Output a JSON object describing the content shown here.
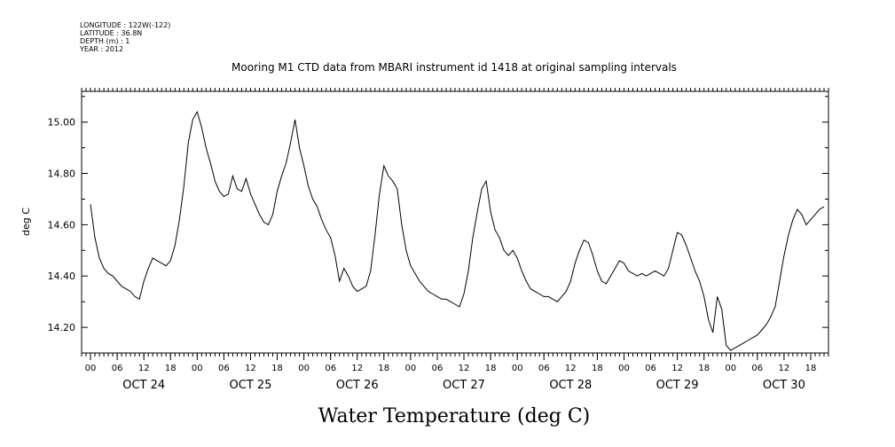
{
  "metadata": {
    "lines": [
      "LONGITUDE : 122W(-122)",
      "LATITUDE : 36.8N",
      "DEPTH (m) : 1",
      "YEAR : 2012"
    ]
  },
  "chart_data": {
    "type": "line",
    "title": "Mooring M1 CTD data from MBARI instrument id 1418 at original sampling intervals",
    "bottom_title": "Water Temperature (deg C)",
    "ylabel": "deg C",
    "xlabel": "",
    "ylim": [
      14.1,
      15.12
    ],
    "xlim": [
      "2012-10-23T22:00",
      "2012-10-30T22:00"
    ],
    "ytick_labels": [
      "14.20",
      "14.40",
      "14.60",
      "14.80",
      "15.00"
    ],
    "ytick_values": [
      14.2,
      14.4,
      14.6,
      14.8,
      15.0
    ],
    "x_hour_labels": [
      "00",
      "06",
      "12",
      "18",
      "00",
      "06",
      "12",
      "18",
      "00",
      "06",
      "12",
      "18",
      "00",
      "06",
      "12",
      "18",
      "00",
      "06",
      "12",
      "18",
      "00",
      "06",
      "12",
      "18",
      "00",
      "06",
      "12",
      "18"
    ],
    "x_day_labels": [
      "OCT 24",
      "OCT 25",
      "OCT 26",
      "OCT 27",
      "OCT 28",
      "OCT 29",
      "OCT 30"
    ],
    "grid": false,
    "series": [
      {
        "x": [
          "2012-10-24T00:00",
          "2012-10-24T01:00",
          "2012-10-24T02:00",
          "2012-10-24T03:00",
          "2012-10-24T04:00",
          "2012-10-24T05:00",
          "2012-10-24T06:00",
          "2012-10-24T07:00",
          "2012-10-24T08:00",
          "2012-10-24T09:00",
          "2012-10-24T10:00",
          "2012-10-24T11:00",
          "2012-10-24T12:00",
          "2012-10-24T13:00",
          "2012-10-24T14:00",
          "2012-10-24T15:00",
          "2012-10-24T16:00",
          "2012-10-24T17:00",
          "2012-10-24T18:00",
          "2012-10-24T19:00",
          "2012-10-24T20:00",
          "2012-10-24T21:00",
          "2012-10-24T22:00",
          "2012-10-24T23:00",
          "2012-10-25T00:00",
          "2012-10-25T01:00",
          "2012-10-25T02:00",
          "2012-10-25T03:00",
          "2012-10-25T04:00",
          "2012-10-25T05:00",
          "2012-10-25T06:00",
          "2012-10-25T07:00",
          "2012-10-25T08:00",
          "2012-10-25T09:00",
          "2012-10-25T10:00",
          "2012-10-25T11:00",
          "2012-10-25T12:00",
          "2012-10-25T13:00",
          "2012-10-25T14:00",
          "2012-10-25T15:00",
          "2012-10-25T16:00",
          "2012-10-25T17:00",
          "2012-10-25T18:00",
          "2012-10-25T19:00",
          "2012-10-25T20:00",
          "2012-10-25T21:00",
          "2012-10-25T22:00",
          "2012-10-25T23:00",
          "2012-10-26T00:00",
          "2012-10-26T01:00",
          "2012-10-26T02:00",
          "2012-10-26T03:00",
          "2012-10-26T04:00",
          "2012-10-26T05:00",
          "2012-10-26T06:00",
          "2012-10-26T07:00",
          "2012-10-26T08:00",
          "2012-10-26T09:00",
          "2012-10-26T10:00",
          "2012-10-26T11:00",
          "2012-10-26T12:00",
          "2012-10-26T13:00",
          "2012-10-26T14:00",
          "2012-10-26T15:00",
          "2012-10-26T16:00",
          "2012-10-26T17:00",
          "2012-10-26T18:00",
          "2012-10-26T19:00",
          "2012-10-26T20:00",
          "2012-10-26T21:00",
          "2012-10-26T22:00",
          "2012-10-26T23:00",
          "2012-10-27T00:00",
          "2012-10-27T01:00",
          "2012-10-27T02:00",
          "2012-10-27T03:00",
          "2012-10-27T04:00",
          "2012-10-27T05:00",
          "2012-10-27T06:00",
          "2012-10-27T07:00",
          "2012-10-27T08:00",
          "2012-10-27T09:00",
          "2012-10-27T10:00",
          "2012-10-27T11:00",
          "2012-10-27T12:00",
          "2012-10-27T13:00",
          "2012-10-27T14:00",
          "2012-10-27T15:00",
          "2012-10-27T16:00",
          "2012-10-27T17:00",
          "2012-10-27T18:00",
          "2012-10-27T19:00",
          "2012-10-27T20:00",
          "2012-10-27T21:00",
          "2012-10-27T22:00",
          "2012-10-27T23:00",
          "2012-10-28T00:00",
          "2012-10-28T01:00",
          "2012-10-28T02:00",
          "2012-10-28T03:00",
          "2012-10-28T04:00",
          "2012-10-28T05:00",
          "2012-10-28T06:00",
          "2012-10-28T07:00",
          "2012-10-28T08:00",
          "2012-10-28T09:00",
          "2012-10-28T10:00",
          "2012-10-28T11:00",
          "2012-10-28T12:00",
          "2012-10-28T13:00",
          "2012-10-28T14:00",
          "2012-10-28T15:00",
          "2012-10-28T16:00",
          "2012-10-28T17:00",
          "2012-10-28T18:00",
          "2012-10-28T19:00",
          "2012-10-28T20:00",
          "2012-10-28T21:00",
          "2012-10-28T22:00",
          "2012-10-28T23:00",
          "2012-10-29T00:00",
          "2012-10-29T01:00",
          "2012-10-29T02:00",
          "2012-10-29T03:00",
          "2012-10-29T04:00",
          "2012-10-29T05:00",
          "2012-10-29T06:00",
          "2012-10-29T07:00",
          "2012-10-29T08:00",
          "2012-10-29T09:00",
          "2012-10-29T10:00",
          "2012-10-29T11:00",
          "2012-10-29T12:00",
          "2012-10-29T13:00",
          "2012-10-29T14:00",
          "2012-10-29T15:00",
          "2012-10-29T16:00",
          "2012-10-29T17:00",
          "2012-10-29T18:00",
          "2012-10-29T19:00",
          "2012-10-29T20:00",
          "2012-10-29T21:00",
          "2012-10-29T22:00",
          "2012-10-29T23:00",
          "2012-10-30T00:00",
          "2012-10-30T01:00",
          "2012-10-30T02:00",
          "2012-10-30T03:00",
          "2012-10-30T04:00",
          "2012-10-30T05:00",
          "2012-10-30T06:00",
          "2012-10-30T07:00",
          "2012-10-30T08:00",
          "2012-10-30T09:00",
          "2012-10-30T10:00",
          "2012-10-30T11:00",
          "2012-10-30T12:00",
          "2012-10-30T13:00",
          "2012-10-30T14:00",
          "2012-10-30T15:00",
          "2012-10-30T16:00",
          "2012-10-30T17:00",
          "2012-10-30T18:00",
          "2012-10-30T19:00",
          "2012-10-30T20:00",
          "2012-10-30T21:00"
        ],
        "y": [
          14.68,
          14.55,
          14.47,
          14.43,
          14.41,
          14.4,
          14.38,
          14.36,
          14.35,
          14.34,
          14.32,
          14.31,
          14.38,
          14.43,
          14.47,
          14.46,
          14.45,
          14.44,
          14.46,
          14.52,
          14.62,
          14.75,
          14.92,
          15.01,
          15.04,
          14.98,
          14.9,
          14.84,
          14.77,
          14.73,
          14.71,
          14.72,
          14.79,
          14.74,
          14.73,
          14.78,
          14.72,
          14.68,
          14.64,
          14.61,
          14.6,
          14.64,
          14.73,
          14.79,
          14.84,
          14.92,
          15.01,
          14.9,
          14.83,
          14.75,
          14.7,
          14.67,
          14.62,
          14.58,
          14.55,
          14.48,
          14.38,
          14.43,
          14.4,
          14.36,
          14.34,
          14.35,
          14.36,
          14.42,
          14.56,
          14.72,
          14.83,
          14.79,
          14.77,
          14.74,
          14.6,
          14.5,
          14.44,
          14.41,
          14.38,
          14.36,
          14.34,
          14.33,
          14.32,
          14.31,
          14.31,
          14.3,
          14.29,
          14.28,
          14.33,
          14.42,
          14.55,
          14.65,
          14.74,
          14.77,
          14.65,
          14.58,
          14.55,
          14.5,
          14.48,
          14.5,
          14.47,
          14.42,
          14.38,
          14.35,
          14.34,
          14.33,
          14.32,
          14.32,
          14.31,
          14.3,
          14.32,
          14.34,
          14.38,
          14.45,
          14.5,
          14.54,
          14.53,
          14.48,
          14.42,
          14.38,
          14.37,
          14.4,
          14.43,
          14.46,
          14.45,
          14.42,
          14.41,
          14.4,
          14.41,
          14.4,
          14.41,
          14.42,
          14.41,
          14.4,
          14.43,
          14.5,
          14.57,
          14.56,
          14.52,
          14.47,
          14.42,
          14.38,
          14.32,
          14.23,
          14.18,
          14.32,
          14.27,
          14.13,
          14.11,
          14.12,
          14.13,
          14.14,
          14.15,
          14.16,
          14.17,
          14.19,
          14.21,
          14.24,
          14.28,
          14.38,
          14.48,
          14.56,
          14.62,
          14.66,
          14.64,
          14.6,
          14.62,
          14.64,
          14.66,
          14.67
        ]
      }
    ]
  }
}
